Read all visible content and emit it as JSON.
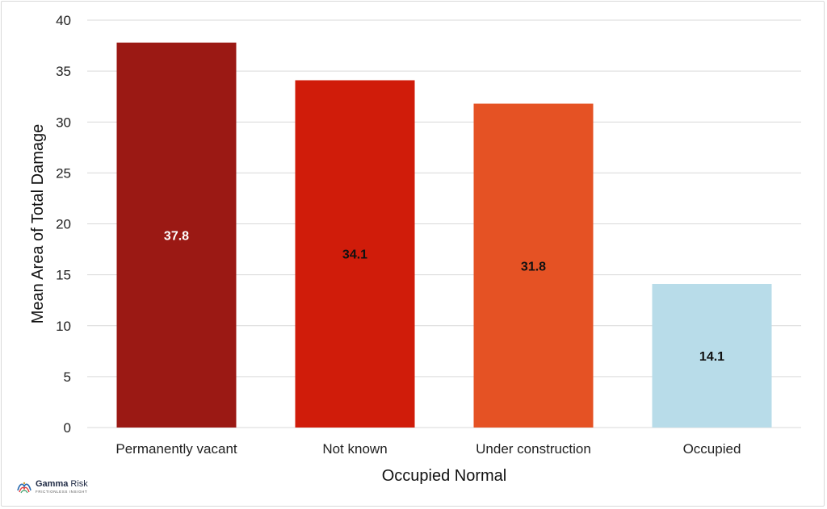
{
  "chart_data": {
    "type": "bar",
    "categories": [
      "Permanently vacant",
      "Not known",
      "Under construction",
      "Occupied"
    ],
    "values": [
      37.8,
      34.1,
      31.8,
      14.1
    ],
    "data_labels": [
      "37.8",
      "34.1",
      "31.8",
      "14.1"
    ],
    "bar_colors": [
      "#9b1914",
      "#d01c0a",
      "#e55224",
      "#b8dce9"
    ],
    "label_colors": [
      "#ffffff",
      "#111111",
      "#111111",
      "#111111"
    ],
    "xlabel": "Occupied Normal",
    "ylabel": "Mean Area of Total Damage",
    "ylim": [
      0,
      40
    ],
    "yticks": [
      0,
      5,
      10,
      15,
      20,
      25,
      30,
      35,
      40
    ],
    "grid": true,
    "gridline_color": "#d9d9d9"
  },
  "logo": {
    "brand_bold": "Gamma",
    "brand_light": "Risk",
    "tagline": "FRICTIONLESS INSIGHT"
  }
}
